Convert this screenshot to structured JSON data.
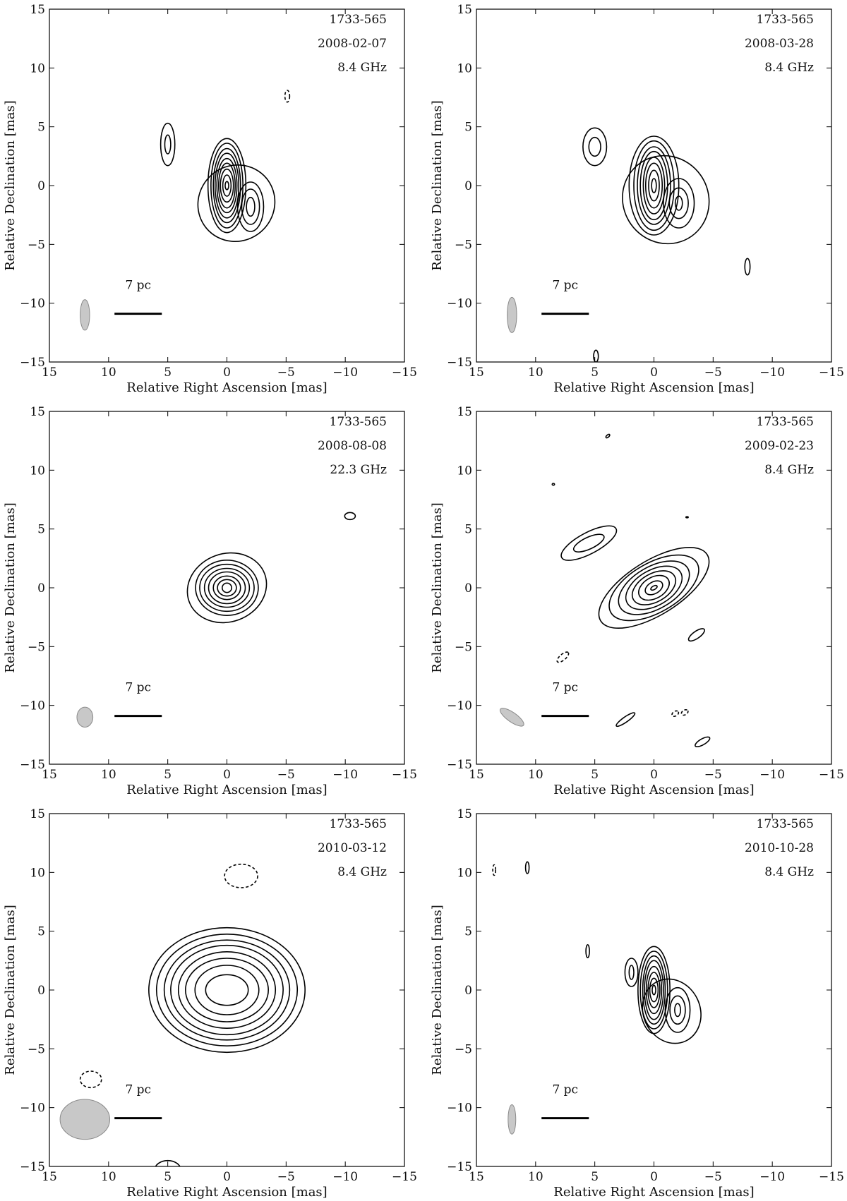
{
  "axes": {
    "xlabel": "Relative Right Ascension [mas]",
    "ylabel": "Relative Declination [mas]",
    "xlim": [
      15,
      -15
    ],
    "ylim": [
      -15,
      15
    ],
    "ticks": [
      15,
      10,
      5,
      0,
      -5,
      -10,
      -15
    ],
    "tick_labels": [
      "15",
      "10",
      "5",
      "0",
      "−5",
      "−10",
      "−15"
    ],
    "scale_bar_label": "7 pc",
    "scale_bar_mas": [
      9.5,
      5.5
    ],
    "scale_bar_dec": -10.9,
    "scale_label_pos_mas": [
      7.5,
      -8.8
    ]
  },
  "colors": {
    "beam_fill": "#c8c8c8",
    "contour": "#000000"
  },
  "chart_data": [
    {
      "type": "contour",
      "source": "1733-565",
      "date": "2008-02-07",
      "frequency": "8.4 GHz",
      "beam": {
        "center": [
          12,
          -11
        ],
        "bmaj": 2.6,
        "bmin": 0.8,
        "pa": 0
      },
      "components": [
        {
          "center": [
            0,
            0
          ],
          "levels": [
            {
              "rx": 0.15,
              "ry": 0.35
            },
            {
              "rx": 0.35,
              "ry": 0.9
            },
            {
              "rx": 0.55,
              "ry": 1.4
            },
            {
              "rx": 0.7,
              "ry": 1.9
            },
            {
              "rx": 0.85,
              "ry": 2.3
            },
            {
              "rx": 1.0,
              "ry": 2.75
            },
            {
              "rx": 1.15,
              "ry": 3.15
            },
            {
              "rx": 1.35,
              "ry": 3.6
            },
            {
              "rx": 1.6,
              "ry": 4.0
            }
          ]
        },
        {
          "center": [
            -2.0,
            -1.8
          ],
          "levels": [
            {
              "rx": 0.35,
              "ry": 0.8
            },
            {
              "rx": 0.75,
              "ry": 1.5
            },
            {
              "rx": 1.1,
              "ry": 2.1
            }
          ]
        },
        {
          "center": [
            -0.8,
            -1.5
          ],
          "levels": [
            {
              "rx": 3.3,
              "ry": 3.2,
              "angle": -40
            }
          ]
        },
        {
          "center": [
            5.0,
            3.5
          ],
          "levels": [
            {
              "rx": 0.25,
              "ry": 0.8
            },
            {
              "rx": 0.6,
              "ry": 1.8
            }
          ]
        },
        {
          "center": [
            -5.1,
            7.6
          ],
          "negative": true,
          "levels": [
            {
              "rx": 0.2,
              "ry": 0.5
            }
          ]
        }
      ]
    },
    {
      "type": "contour",
      "source": "1733-565",
      "date": "2008-03-28",
      "frequency": "8.4 GHz",
      "beam": {
        "center": [
          12,
          -11
        ],
        "bmaj": 3.0,
        "bmin": 0.8,
        "pa": 0
      },
      "components": [
        {
          "center": [
            0,
            0
          ],
          "levels": [
            {
              "rx": 0.2,
              "ry": 0.6
            },
            {
              "rx": 0.45,
              "ry": 1.3
            },
            {
              "rx": 0.7,
              "ry": 1.9
            },
            {
              "rx": 0.9,
              "ry": 2.4
            },
            {
              "rx": 1.15,
              "ry": 2.9
            },
            {
              "rx": 1.4,
              "ry": 3.3
            },
            {
              "rx": 1.7,
              "ry": 3.8
            },
            {
              "rx": 2.1,
              "ry": 4.2
            }
          ]
        },
        {
          "center": [
            -2.1,
            -1.5
          ],
          "levels": [
            {
              "rx": 0.3,
              "ry": 0.6
            },
            {
              "rx": 0.8,
              "ry": 1.3
            },
            {
              "rx": 1.3,
              "ry": 2.1
            }
          ]
        },
        {
          "center": [
            -1.0,
            -1.2
          ],
          "levels": [
            {
              "rx": 3.6,
              "ry": 3.8,
              "angle": -35
            }
          ]
        },
        {
          "center": [
            5.0,
            3.3
          ],
          "levels": [
            {
              "rx": 0.5,
              "ry": 0.8
            },
            {
              "rx": 1.0,
              "ry": 1.6
            }
          ]
        },
        {
          "center": [
            -7.9,
            -6.9
          ],
          "levels": [
            {
              "rx": 0.22,
              "ry": 0.7
            }
          ]
        },
        {
          "center": [
            4.9,
            -14.5
          ],
          "levels": [
            {
              "rx": 0.2,
              "ry": 0.5
            }
          ]
        }
      ]
    },
    {
      "type": "contour",
      "source": "1733-565",
      "date": "2008-08-08",
      "frequency": "22.3 GHz",
      "beam": {
        "center": [
          12,
          -11
        ],
        "bmaj": 1.7,
        "bmin": 1.35,
        "pa": 0
      },
      "components": [
        {
          "center": [
            0,
            0
          ],
          "levels": [
            {
              "rx": 0.4,
              "ry": 0.4
            },
            {
              "rx": 0.8,
              "ry": 0.7
            },
            {
              "rx": 1.15,
              "ry": 1.0
            },
            {
              "rx": 1.55,
              "ry": 1.35
            },
            {
              "rx": 1.9,
              "ry": 1.65
            },
            {
              "rx": 2.3,
              "ry": 2.0
            },
            {
              "rx": 2.65,
              "ry": 2.35
            },
            {
              "rx": 3.4,
              "ry": 2.9,
              "angle": -20
            }
          ]
        },
        {
          "center": [
            -10.4,
            6.1
          ],
          "levels": [
            {
              "rx": 0.45,
              "ry": 0.3
            }
          ]
        }
      ]
    },
    {
      "type": "contour",
      "source": "1733-565",
      "date": "2009-02-23",
      "frequency": "8.4 GHz",
      "beam": {
        "center": [
          12,
          -11
        ],
        "bmaj": 2.4,
        "bmin": 0.8,
        "pa": -55
      },
      "components": [
        {
          "center": [
            0,
            0
          ],
          "levels": [
            {
              "rx": 0.3,
              "ry": 0.15,
              "angle": -30
            },
            {
              "rx": 0.8,
              "ry": 0.5,
              "angle": -30
            },
            {
              "rx": 1.4,
              "ry": 0.9,
              "angle": -30
            },
            {
              "rx": 2.0,
              "ry": 1.2,
              "angle": -30
            },
            {
              "rx": 2.6,
              "ry": 1.5,
              "angle": -30
            },
            {
              "rx": 3.3,
              "ry": 1.8,
              "angle": -30
            },
            {
              "rx": 4.2,
              "ry": 2.1,
              "angle": -30
            },
            {
              "rx": 5.3,
              "ry": 2.3,
              "angle": -32
            }
          ]
        },
        {
          "center": [
            5.5,
            3.8
          ],
          "levels": [
            {
              "rx": 1.4,
              "ry": 0.5,
              "angle": -25
            },
            {
              "rx": 2.6,
              "ry": 0.9,
              "angle": -28
            }
          ]
        },
        {
          "center": [
            -3.6,
            -4.0
          ],
          "levels": [
            {
              "rx": 0.8,
              "ry": 0.3,
              "angle": -35
            }
          ]
        },
        {
          "center": [
            7.7,
            -5.9
          ],
          "negative": true,
          "levels": [
            {
              "rx": 0.6,
              "ry": 0.25,
              "angle": -40
            }
          ]
        },
        {
          "center": [
            2.4,
            -11.2
          ],
          "levels": [
            {
              "rx": 0.95,
              "ry": 0.22,
              "angle": -35
            }
          ]
        },
        {
          "center": [
            -1.8,
            -10.7
          ],
          "negative": true,
          "levels": [
            {
              "rx": 0.3,
              "ry": 0.2,
              "angle": -30
            }
          ]
        },
        {
          "center": [
            -2.6,
            -10.6
          ],
          "negative": true,
          "levels": [
            {
              "rx": 0.3,
              "ry": 0.2,
              "angle": -30
            }
          ]
        },
        {
          "center": [
            -4.1,
            -13.1
          ],
          "levels": [
            {
              "rx": 0.7,
              "ry": 0.25,
              "angle": -30
            }
          ]
        },
        {
          "center": [
            3.9,
            12.9
          ],
          "levels": [
            {
              "rx": 0.2,
              "ry": 0.1,
              "angle": -40
            }
          ]
        },
        {
          "center": [
            8.5,
            8.8
          ],
          "levels": [
            {
              "rx": 0.1,
              "ry": 0.08
            }
          ]
        },
        {
          "center": [
            -2.8,
            6.0
          ],
          "levels": [
            {
              "rx": 0.1,
              "ry": 0.05
            }
          ]
        }
      ]
    },
    {
      "type": "contour",
      "source": "1733-565",
      "date": "2010-03-12",
      "frequency": "8.4 GHz",
      "beam": {
        "center": [
          12,
          -11
        ],
        "bmaj": 3.4,
        "bmin": 4.2,
        "pa": 0
      },
      "components": [
        {
          "center": [
            0,
            0
          ],
          "levels": [
            {
              "rx": 1.8,
              "ry": 1.3
            },
            {
              "rx": 2.7,
              "ry": 2.1
            },
            {
              "rx": 3.5,
              "ry": 2.7
            },
            {
              "rx": 4.1,
              "ry": 3.25
            },
            {
              "rx": 4.75,
              "ry": 3.8
            },
            {
              "rx": 5.3,
              "ry": 4.25
            },
            {
              "rx": 5.95,
              "ry": 4.75
            },
            {
              "rx": 6.6,
              "ry": 5.3
            }
          ]
        },
        {
          "center": [
            -1.2,
            9.7
          ],
          "negative": true,
          "levels": [
            {
              "rx": 1.4,
              "ry": 1.0
            }
          ]
        },
        {
          "center": [
            11.5,
            -7.6
          ],
          "negative": true,
          "levels": [
            {
              "rx": 0.9,
              "ry": 0.7
            }
          ]
        },
        {
          "center": [
            5.0,
            -15.3
          ],
          "levels": [
            {
              "rx": 1.1,
              "ry": 0.8
            }
          ]
        }
      ]
    },
    {
      "type": "contour",
      "source": "1733-565",
      "date": "2010-10-28",
      "frequency": "8.4 GHz",
      "beam": {
        "center": [
          12,
          -11
        ],
        "bmaj": 2.5,
        "bmin": 0.65,
        "pa": 0
      },
      "components": [
        {
          "center": [
            0,
            0
          ],
          "levels": [
            {
              "rx": 0.15,
              "ry": 0.4
            },
            {
              "rx": 0.35,
              "ry": 1.0
            },
            {
              "rx": 0.5,
              "ry": 1.5
            },
            {
              "rx": 0.65,
              "ry": 2.0
            },
            {
              "rx": 0.8,
              "ry": 2.5
            },
            {
              "rx": 0.95,
              "ry": 2.9
            },
            {
              "rx": 1.15,
              "ry": 3.3
            },
            {
              "rx": 1.35,
              "ry": 3.7
            }
          ]
        },
        {
          "center": [
            -2.0,
            -1.7
          ],
          "levels": [
            {
              "rx": 0.25,
              "ry": 0.55
            },
            {
              "rx": 0.65,
              "ry": 1.2
            },
            {
              "rx": 1.05,
              "ry": 1.9
            }
          ]
        },
        {
          "center": [
            -1.5,
            -1.8
          ],
          "levels": [
            {
              "rx": 2.4,
              "ry": 2.8,
              "angle": -25
            }
          ]
        },
        {
          "center": [
            1.9,
            1.5
          ],
          "levels": [
            {
              "rx": 0.2,
              "ry": 0.6
            },
            {
              "rx": 0.55,
              "ry": 1.2
            }
          ]
        },
        {
          "center": [
            5.6,
            3.3
          ],
          "levels": [
            {
              "rx": 0.15,
              "ry": 0.55
            }
          ]
        },
        {
          "center": [
            10.7,
            10.4
          ],
          "levels": [
            {
              "rx": 0.15,
              "ry": 0.5
            }
          ]
        },
        {
          "center": [
            13.5,
            10.2
          ],
          "negative": true,
          "levels": [
            {
              "rx": 0.12,
              "ry": 0.45
            }
          ]
        }
      ]
    }
  ]
}
